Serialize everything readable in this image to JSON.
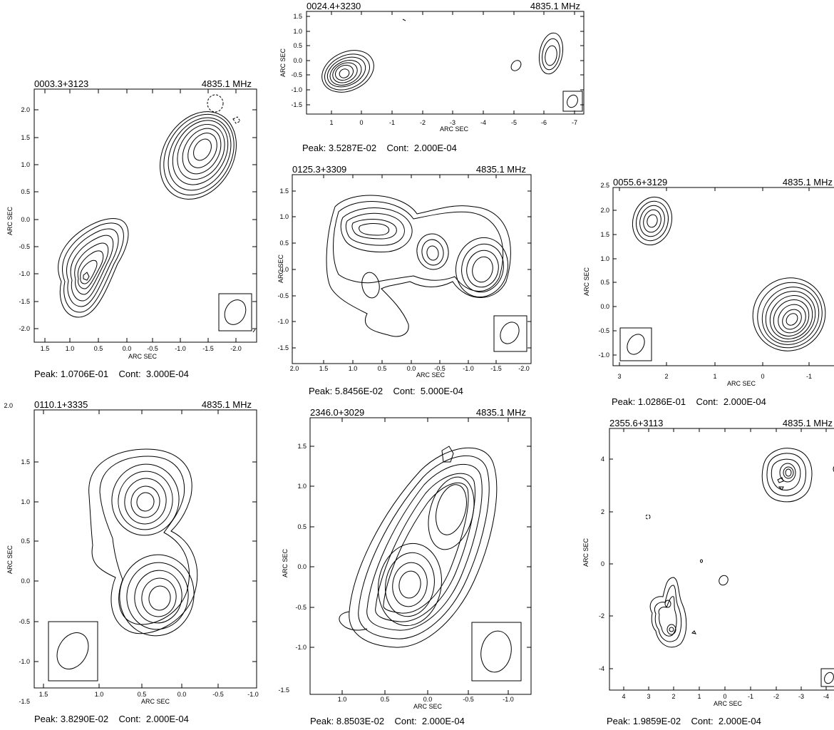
{
  "panels": [
    {
      "id": "p1",
      "source": "0003.3+3123",
      "frequency": "4835.1 MHz",
      "peak": "Peak: 1.0706E-01",
      "cont": "Cont:  3.000E-04",
      "x_ticks": [
        "1.5",
        "1.0",
        "0.5",
        "0.0",
        "-0.5",
        "-1.0",
        "-1.5",
        "-2.0"
      ],
      "y_ticks": [
        "2.0",
        "1.5",
        "1.0",
        "0.5",
        "0.0",
        "-0.5",
        "-1.0",
        "-1.5",
        "-2.0"
      ],
      "xlabel": "ARC SEC",
      "ylabel": "ARC SEC"
    },
    {
      "id": "p2",
      "source": "0024.4+3230",
      "frequency": "4835.1 MHz",
      "peak": "Peak: 3.5287E-02",
      "cont": "Cont:  2.000E-04",
      "x_ticks": [
        "1",
        "0",
        "-1",
        "-2",
        "-3",
        "-4",
        "-5",
        "-6",
        "-7"
      ],
      "y_ticks": [
        "1.5",
        "1.0",
        "0.5",
        "0.0",
        "-0.5",
        "-1.0",
        "-1.5"
      ],
      "xlabel": "ARC SEC",
      "ylabel": "ARC SEC"
    },
    {
      "id": "p3",
      "source": "0125.3+3309",
      "frequency": "4835.1 MHz",
      "peak": "Peak: 5.8456E-02",
      "cont": "Cont:  5.000E-04",
      "x_ticks": [
        "2.0",
        "1.5",
        "1.0",
        "0.5",
        "0.0",
        "-0.5",
        "-1.0",
        "-1.5",
        "-2.0"
      ],
      "y_ticks": [
        "1.5",
        "1.0",
        "0.5",
        "0.0",
        "-0.5",
        "-1.0",
        "-1.5"
      ],
      "xlabel": "ARC SEC",
      "ylabel": "ARC SEC"
    },
    {
      "id": "p4",
      "source": "0055.6+3129",
      "frequency": "4835.1 MHz",
      "peak": "Peak: 1.0286E-01",
      "cont": "Cont:  2.000E-04",
      "x_ticks": [
        "3",
        "2",
        "1",
        "0",
        "-1"
      ],
      "y_ticks": [
        "2.5",
        "2.0",
        "1.5",
        "1.0",
        "0.5",
        "0.0",
        "-0.5",
        "-1.0"
      ],
      "xlabel": "ARC SEC",
      "ylabel": "ARC SEC"
    },
    {
      "id": "p5",
      "source": "0110.1+3335",
      "frequency": "4835.1 MHz",
      "peak": "Peak: 3.8290E-02",
      "cont": "Cont:  2.000E-04",
      "x_ticks": [
        "1.5",
        "1.0",
        "0.5",
        "0.0",
        "-0.5",
        "-1.0"
      ],
      "y_ticks": [
        "2.0",
        "1.5",
        "1.0",
        "0.5",
        "0.0",
        "-0.5",
        "-1.0",
        "-1.5"
      ],
      "xlabel": "ARC SEC",
      "ylabel": "ARC SEC"
    },
    {
      "id": "p6",
      "source": "2346.0+3029",
      "frequency": "4835.1 MHz",
      "peak": "Peak: 8.8503E-02",
      "cont": "Cont:  2.000E-04",
      "x_ticks": [
        "1.0",
        "0.5",
        "0.0",
        "-0.5",
        "-1.0"
      ],
      "y_ticks": [
        "1.5",
        "1.0",
        "0.5",
        "0.0",
        "-0.5",
        "-1.0",
        "-1.5"
      ],
      "xlabel": "ARC SEC",
      "ylabel": "ARC SEC"
    },
    {
      "id": "p7",
      "source": "2355.6+3113",
      "frequency": "4835.1 MHz",
      "peak": "Peak: 1.9859E-02",
      "cont": "Cont:  2.000E-04",
      "x_ticks": [
        "4",
        "3",
        "2",
        "1",
        "0",
        "-1",
        "-2",
        "-3",
        "-4"
      ],
      "y_ticks": [
        "4",
        "2",
        "0",
        "-2",
        "-4"
      ],
      "xlabel": "ARC SEC",
      "ylabel": "ARC SEC"
    }
  ]
}
